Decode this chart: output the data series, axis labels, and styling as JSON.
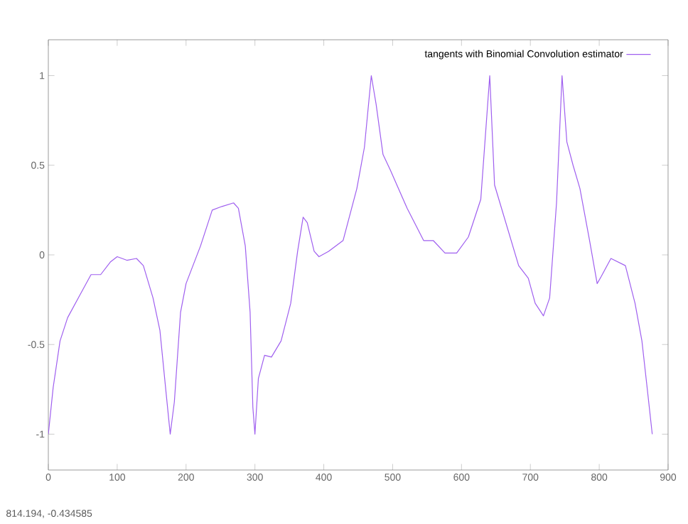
{
  "chart_data": {
    "type": "line",
    "x": [
      0,
      7,
      17,
      28,
      45,
      62,
      76,
      90,
      100,
      114,
      128,
      138,
      152,
      162,
      171,
      177,
      183,
      192,
      200,
      221,
      238,
      252,
      269,
      276,
      286,
      293,
      297,
      300,
      305,
      314,
      324,
      338,
      352,
      362,
      370,
      376,
      386,
      393,
      407,
      428,
      448,
      459,
      469,
      476,
      486,
      497,
      521,
      545,
      559,
      576,
      593,
      610,
      628,
      641,
      648,
      662,
      683,
      697,
      707,
      719,
      728,
      738,
      746,
      753,
      762,
      772,
      786,
      797,
      803,
      817,
      838,
      852,
      862,
      871,
      877
    ],
    "series": [
      {
        "name": "tangents with Binomial Convolution estimator",
        "color": "#9f5fef",
        "values": [
          -1.0,
          -0.74,
          -0.48,
          -0.35,
          -0.23,
          -0.11,
          -0.11,
          -0.04,
          -0.01,
          -0.03,
          -0.02,
          -0.06,
          -0.24,
          -0.42,
          -0.77,
          -1.0,
          -0.82,
          -0.32,
          -0.16,
          0.05,
          0.25,
          0.27,
          0.29,
          0.26,
          0.05,
          -0.32,
          -0.85,
          -1.0,
          -0.69,
          -0.56,
          -0.57,
          -0.48,
          -0.27,
          0.02,
          0.21,
          0.18,
          0.02,
          -0.01,
          0.02,
          0.08,
          0.37,
          0.6,
          1.0,
          0.84,
          0.56,
          0.47,
          0.26,
          0.08,
          0.08,
          0.01,
          0.01,
          0.1,
          0.31,
          1.0,
          0.39,
          0.21,
          -0.06,
          -0.13,
          -0.27,
          -0.34,
          -0.24,
          0.29,
          1.0,
          0.63,
          0.5,
          0.37,
          0.08,
          -0.16,
          -0.12,
          -0.02,
          -0.06,
          -0.27,
          -0.48,
          -0.79,
          -1.0
        ]
      }
    ],
    "xlim": [
      0,
      900
    ],
    "ylim": [
      -1.2,
      1.2
    ],
    "xticks": [
      0,
      100,
      200,
      300,
      400,
      500,
      600,
      700,
      800,
      900
    ],
    "yticks": [
      -1,
      -0.5,
      0,
      0.5,
      1
    ],
    "legend": "top right",
    "grid": false,
    "marker": "none",
    "line_style": "solid",
    "annotations": [
      "814.194, -0.434585"
    ]
  }
}
